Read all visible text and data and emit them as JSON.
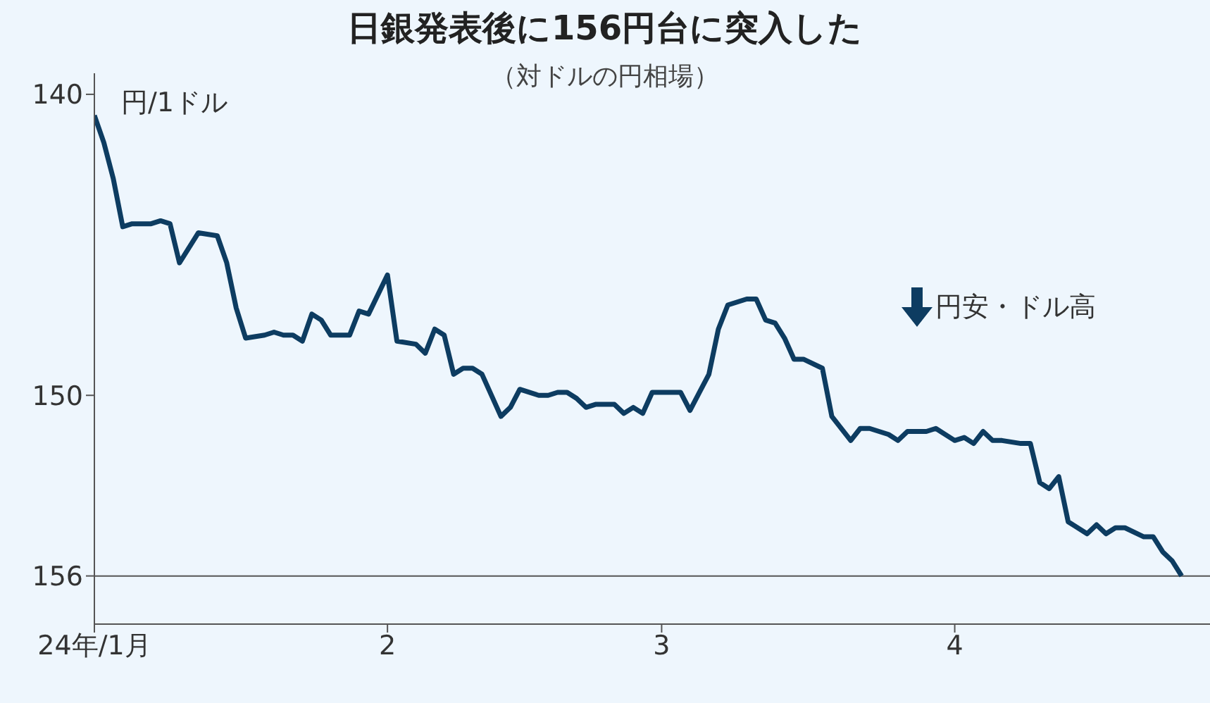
{
  "chart_data": {
    "type": "line",
    "title": "日銀発表後に156円台に突入した",
    "subtitle": "（対ドルの円相場）",
    "ylabel": "円/1ドル",
    "annotations": [
      "円安・ドル高"
    ],
    "x": [
      "--01-01",
      "--01-02",
      "--01-03",
      "--01-04",
      "--01-05",
      "--01-07",
      "--01-08",
      "--01-09",
      "--01-10",
      "--01-12",
      "--01-14",
      "--01-15",
      "--01-16",
      "--01-17",
      "--01-19",
      "--01-20",
      "--01-21",
      "--01-22",
      "--01-23",
      "--01-24",
      "--01-25",
      "--01-26",
      "--01-28",
      "--01-29",
      "--01-30",
      "--02-01",
      "--02-02",
      "--02-04",
      "--02-05",
      "--02-06",
      "--02-07",
      "--02-08",
      "--02-09",
      "--02-10",
      "--02-11",
      "--02-13",
      "--02-14",
      "--02-15",
      "--02-17",
      "--02-18",
      "--02-19",
      "--02-20",
      "--02-21",
      "--02-22",
      "--02-23",
      "--02-25",
      "--02-26",
      "--02-27",
      "--02-28",
      "--02-29",
      "--03-01",
      "--03-03",
      "--03-04",
      "--03-05",
      "--03-06",
      "--03-07",
      "--03-08",
      "--03-10",
      "--03-11",
      "--03-12",
      "--03-13",
      "--03-14",
      "--03-15",
      "--03-16",
      "--03-18",
      "--03-19",
      "--03-21",
      "--03-22",
      "--03-23",
      "--03-25",
      "--03-26",
      "--03-27",
      "--03-29",
      "--03-30",
      "--04-01",
      "--04-02",
      "--04-03",
      "--04-04",
      "--04-05",
      "--04-06",
      "--04-08",
      "--04-09",
      "--04-10",
      "--04-11",
      "--04-12",
      "--04-13",
      "--04-15",
      "--04-16",
      "--04-17",
      "--04-18",
      "--04-19",
      "--04-21",
      "--04-22",
      "--04-23",
      "--04-24",
      "--04-25"
    ],
    "series": [
      {
        "color": "#0d3c61",
        "values": [
          140.7,
          141.6,
          142.8,
          144.4,
          144.3,
          144.3,
          144.2,
          144.3,
          145.6,
          144.6,
          144.7,
          145.6,
          147.1,
          148.1,
          148.0,
          147.9,
          148.0,
          148.0,
          148.2,
          147.3,
          147.5,
          148.0,
          148.0,
          147.2,
          147.3,
          146.0,
          148.2,
          148.3,
          148.6,
          147.8,
          148.0,
          149.3,
          149.1,
          149.1,
          149.3,
          150.7,
          150.4,
          149.8,
          150.0,
          150.0,
          149.9,
          149.9,
          150.1,
          150.4,
          150.3,
          150.3,
          150.6,
          150.4,
          150.6,
          149.9,
          149.9,
          149.9,
          150.5,
          149.9,
          149.3,
          147.8,
          147.0,
          146.8,
          146.8,
          147.5,
          147.6,
          148.1,
          148.8,
          148.8,
          149.1,
          150.7,
          151.5,
          151.1,
          151.1,
          151.3,
          151.5,
          151.2,
          151.2,
          151.1,
          151.5,
          151.4,
          151.6,
          151.2,
          151.5,
          151.5,
          151.6,
          151.6,
          152.9,
          153.1,
          152.7,
          154.2,
          154.6,
          154.3,
          154.6,
          154.4,
          154.4,
          154.7,
          154.7,
          155.2,
          155.5,
          156.0
        ]
      }
    ],
    "xlim": [
      "--01-01",
      "--04-28"
    ],
    "xticks": [
      {
        "value": "--01-01",
        "label": "24年/1月"
      },
      {
        "value": "--02-01",
        "label": "2"
      },
      {
        "value": "--03-01",
        "label": "3"
      },
      {
        "value": "--04-01",
        "label": "4"
      }
    ],
    "ylim": [
      157.6,
      139.3
    ],
    "yticks": [
      140,
      150,
      156
    ],
    "ref_lines": [
      {
        "axis": "y",
        "value": 156,
        "color": "#555555"
      }
    ],
    "grid": false,
    "legend": false,
    "marker": "none",
    "line_style": "solid"
  }
}
